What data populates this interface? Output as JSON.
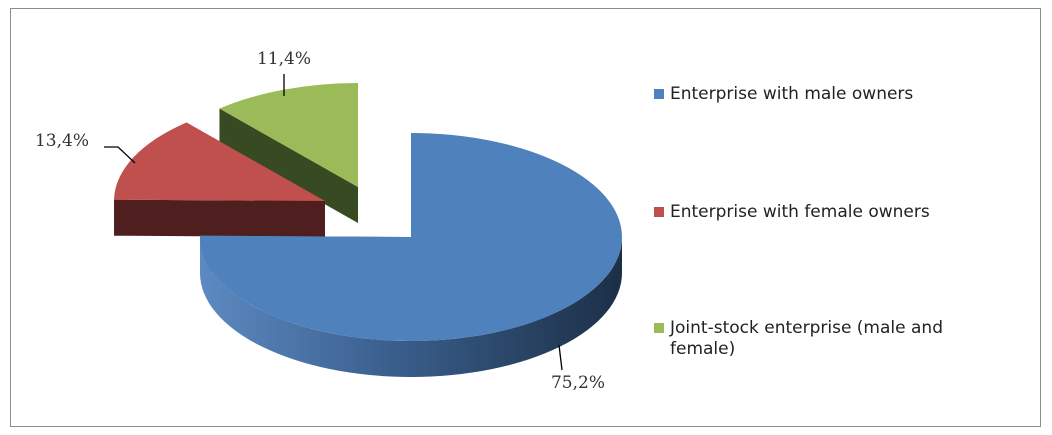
{
  "chart_data": {
    "type": "pie",
    "style": "3d-exploded",
    "categories": [
      "Enterprise with male owners",
      "Enterprise with female owners",
      "Joint-stock enterprise (male and female)"
    ],
    "values": [
      75.2,
      13.4,
      11.4
    ],
    "value_labels": [
      "75,2%",
      "13,4%",
      "11,4%"
    ],
    "colors": [
      "#4f81bd",
      "#c0504d",
      "#9bbb59"
    ],
    "legend": "right"
  }
}
